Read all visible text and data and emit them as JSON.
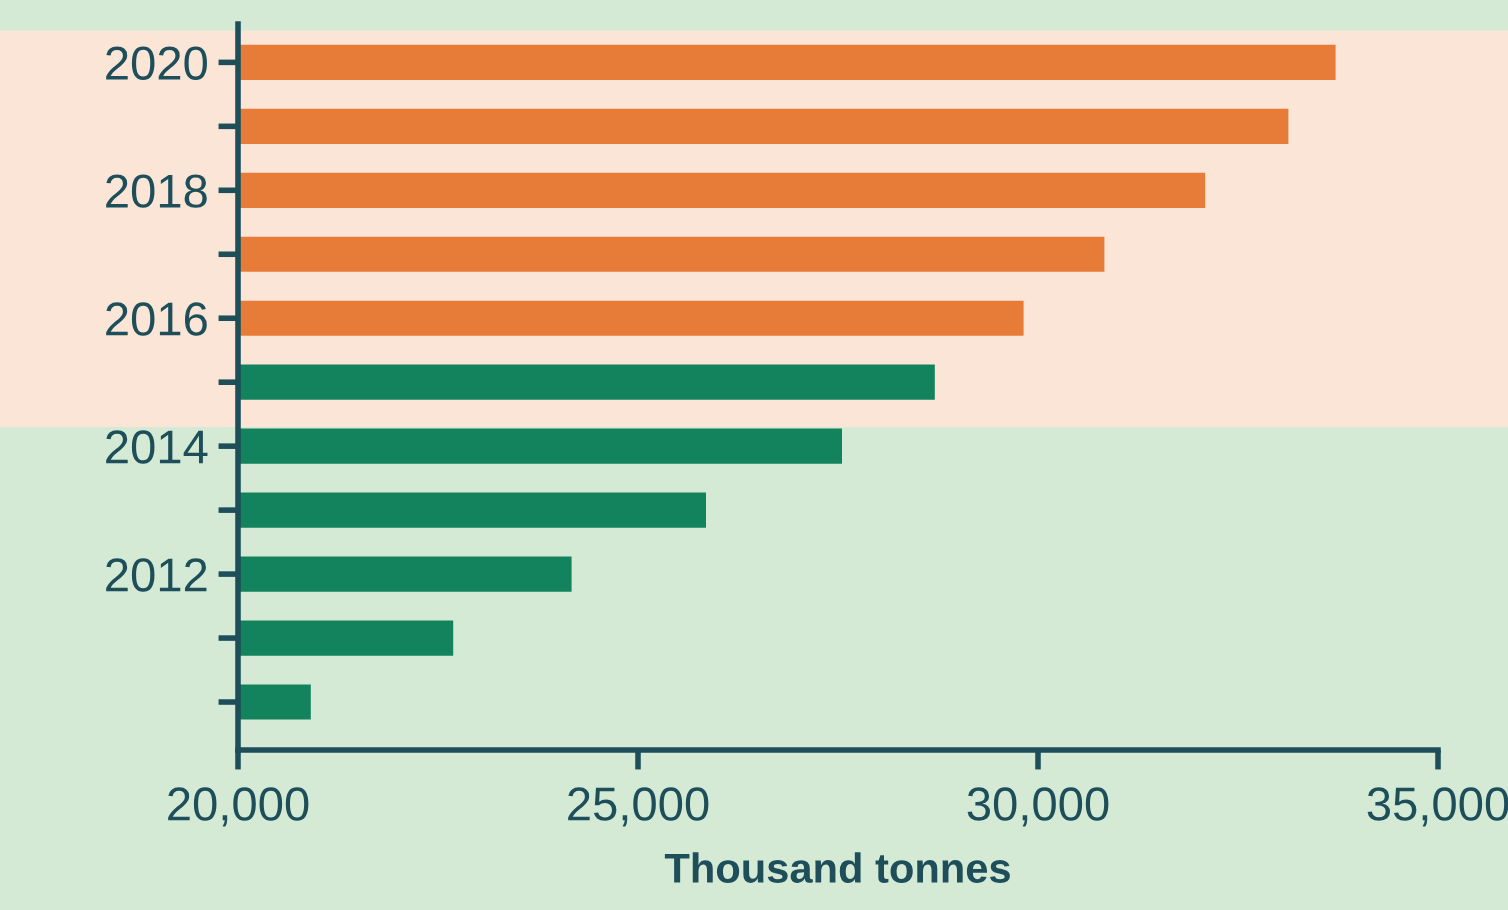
{
  "chart_data": {
    "type": "bar",
    "orientation": "horizontal",
    "xlabel": "Thousand tonnes",
    "categories": [
      "2020",
      null,
      "2018",
      null,
      "2016",
      null,
      "2014",
      null,
      "2012",
      null,
      null
    ],
    "values": [
      33720,
      33130,
      32090,
      30830,
      29820,
      28710,
      27550,
      25850,
      24170,
      22690,
      20910
    ],
    "colors": [
      "#e77c38",
      "#e77c38",
      "#e77c38",
      "#e77c38",
      "#e77c38",
      "#12835c",
      "#12835c",
      "#12835c",
      "#12835c",
      "#12835c",
      "#12835c"
    ],
    "xlim": [
      20000,
      35000
    ],
    "xticks": [
      {
        "value": 20000,
        "label": "20,000"
      },
      {
        "value": 25000,
        "label": "25,000"
      },
      {
        "value": 30000,
        "label": "30,000"
      },
      {
        "value": 35000,
        "label": "35,000"
      }
    ],
    "bands": [
      {
        "axis": "y",
        "from": "2020",
        "to": "2014",
        "color": "#fae5d6"
      }
    ],
    "grid": false,
    "legend": false
  }
}
